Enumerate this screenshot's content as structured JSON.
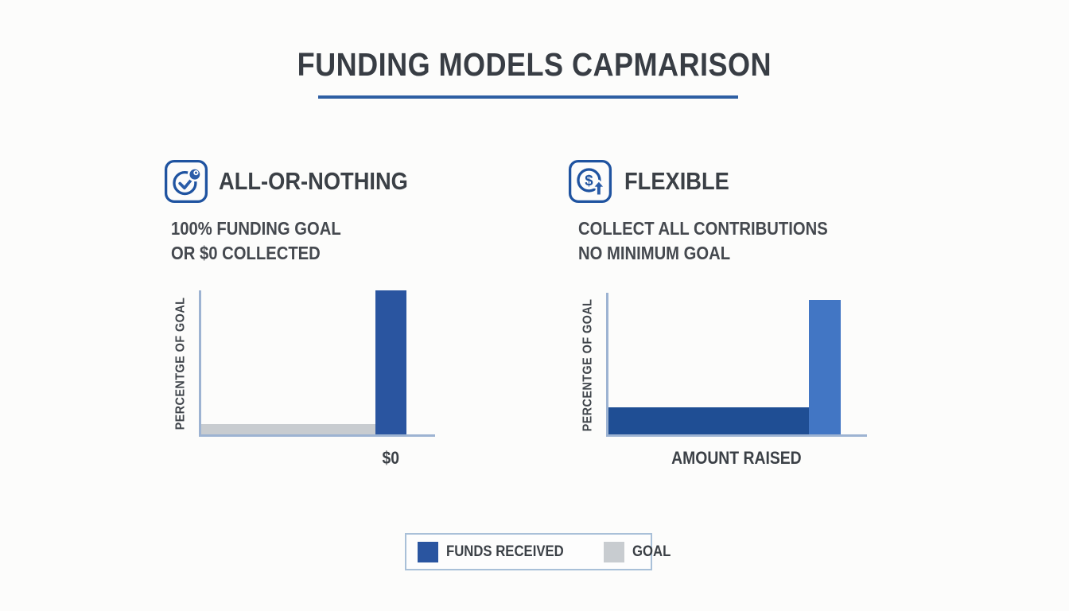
{
  "title": "FUNDING MODELS CAPMARISON",
  "colors": {
    "accent_underline": "#2e5fa3",
    "icon_blue": "#1f53a0",
    "axis": "#9db3d2",
    "text_dark": "#3b4046",
    "funds_dark": "#2a55a0",
    "funds_darker": "#1f4e94",
    "raised_light": "#4276c4",
    "goal_gray": "#c8ccd0",
    "legend_border": "#a9c0d8",
    "background": "#fcfcfb"
  },
  "sections": [
    {
      "heading": "ALL-OR-NOTHING",
      "icon": "check-circle-badge-icon",
      "desc_line1": "100% FUNDING GOAL",
      "desc_line2": "OR $0 COLLECTED",
      "ylabel": "PERCENTGE OF GOAL",
      "xlabel": "$0"
    },
    {
      "heading": "FLEXIBLE",
      "icon": "dollar-circle-up-arrow-icon",
      "desc_line1": "COLLECT ALL CONTRIBUTIONS",
      "desc_line2": "NO MINIMUM GOAL",
      "ylabel": "PERCENTGE OF GOAL",
      "xlabel": "AMOUNT RAISED"
    }
  ],
  "legend": {
    "items": [
      {
        "label": "FUNDS RECEIVED",
        "color": "#2a55a0"
      },
      {
        "label": "GOAL",
        "color": "#c8ccd0"
      }
    ]
  },
  "chart_data": [
    {
      "type": "bar",
      "title": "ALL-OR-NOTHING",
      "xlabel": "$0",
      "ylabel": "PERCENTGE OF GOAL",
      "ylim": [
        0,
        100
      ],
      "grid": false,
      "legend_position": "bottom-shared",
      "bars": [
        {
          "name": "GOAL",
          "height_pct": 7,
          "left_pct": 0,
          "width_pct": 74.4,
          "color": "#c8ccd0"
        },
        {
          "name": "FUNDS RECEIVED",
          "height_pct": 100,
          "left_pct": 74.4,
          "width_pct": 13.5,
          "color": "#2a55a0"
        }
      ]
    },
    {
      "type": "bar",
      "title": "FLEXIBLE",
      "xlabel": "AMOUNT RAISED",
      "ylabel": "PERCENTGE OF GOAL",
      "ylim": [
        0,
        100
      ],
      "grid": false,
      "legend_position": "bottom-shared",
      "bars": [
        {
          "name": "FUNDS RECEIVED",
          "height_pct": 19,
          "left_pct": 0,
          "width_pct": 77.4,
          "color": "#1f4e94"
        },
        {
          "name": "AMOUNT RAISED",
          "height_pct": 95,
          "left_pct": 77.4,
          "width_pct": 12.5,
          "color": "#4276c4"
        }
      ]
    }
  ]
}
